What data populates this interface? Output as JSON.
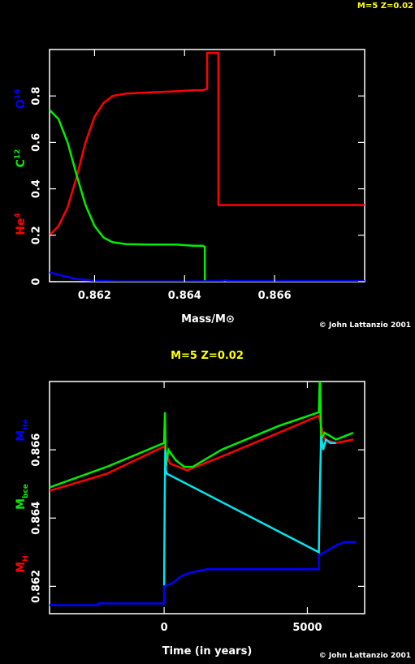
{
  "corner_label": "M=5 Z=0.02",
  "colors": {
    "red": "#ff0000",
    "green": "#00ee00",
    "blue": "#0000ff",
    "cyan": "#00e5ee",
    "yellow": "#ffff00",
    "frame": "#ffffff"
  },
  "chart_data": [
    {
      "type": "line",
      "title": "",
      "xlabel": "Mass/M⊙",
      "ylabel_parts": [
        {
          "base": "He",
          "sup": "4",
          "color": "#ff0000"
        },
        {
          "base": "C",
          "sup": "12",
          "color": "#00ee00"
        },
        {
          "base": "O",
          "sup": "16",
          "color": "#0000ff"
        }
      ],
      "xlim": [
        0.861,
        0.868
      ],
      "ylim": [
        0,
        1.0
      ],
      "x_ticks": [
        0.862,
        0.864,
        0.866
      ],
      "x_tick_labels": [
        "0.862",
        "0.864",
        "0.866"
      ],
      "y_ticks": [
        0,
        0.2,
        0.4,
        0.6,
        0.8
      ],
      "y_tick_labels": [
        "0",
        "0.2",
        "0.4",
        "0.6",
        "0.8"
      ],
      "credit": "© John Lattanzio 2001",
      "series": [
        {
          "color": "#ff0000",
          "points": [
            [
              0.861,
              0.2
            ],
            [
              0.8612,
              0.24
            ],
            [
              0.8614,
              0.32
            ],
            [
              0.8616,
              0.45
            ],
            [
              0.8618,
              0.6
            ],
            [
              0.862,
              0.71
            ],
            [
              0.8622,
              0.77
            ],
            [
              0.8624,
              0.8
            ],
            [
              0.8627,
              0.81
            ],
            [
              0.8632,
              0.815
            ],
            [
              0.8638,
              0.82
            ],
            [
              0.8642,
              0.825
            ],
            [
              0.8644,
              0.825
            ],
            [
              0.8645,
              0.83
            ],
            [
              0.8645,
              0.985
            ],
            [
              0.86475,
              0.985
            ],
            [
              0.86475,
              0.33
            ],
            [
              0.866,
              0.33
            ],
            [
              0.868,
              0.33
            ]
          ]
        },
        {
          "color": "#00ee00",
          "points": [
            [
              0.861,
              0.74
            ],
            [
              0.8612,
              0.7
            ],
            [
              0.8614,
              0.6
            ],
            [
              0.8616,
              0.46
            ],
            [
              0.8618,
              0.33
            ],
            [
              0.862,
              0.24
            ],
            [
              0.8622,
              0.19
            ],
            [
              0.8624,
              0.17
            ],
            [
              0.8627,
              0.162
            ],
            [
              0.8632,
              0.16
            ],
            [
              0.8638,
              0.16
            ],
            [
              0.8642,
              0.155
            ],
            [
              0.8644,
              0.155
            ],
            [
              0.86445,
              0.15
            ],
            [
              0.86445,
              0.0
            ],
            [
              0.8645,
              0.0
            ]
          ]
        },
        {
          "color": "#0000ff",
          "points": [
            [
              0.861,
              0.04
            ],
            [
              0.8613,
              0.025
            ],
            [
              0.8616,
              0.012
            ],
            [
              0.862,
              0.004
            ],
            [
              0.8625,
              0.001
            ],
            [
              0.864,
              0.001
            ],
            [
              0.8648,
              0.002
            ],
            [
              0.8649,
              0.006
            ],
            [
              0.865,
              0.002
            ],
            [
              0.868,
              0.002
            ]
          ]
        }
      ]
    },
    {
      "type": "line",
      "title": "M=5 Z=0.02",
      "xlabel": "Time (in years)",
      "ylabel_parts": [
        {
          "base": "M",
          "sub": "H",
          "color": "#ff0000"
        },
        {
          "base": "M",
          "sub": "bce",
          "color": "#00ee00"
        },
        {
          "base": "M",
          "sub": "He",
          "color": "#0000ff"
        }
      ],
      "xlim": [
        -4000,
        7000
      ],
      "ylim": [
        0.8612,
        0.868
      ],
      "x_ticks": [
        0,
        5000
      ],
      "x_tick_labels": [
        "0",
        "5000"
      ],
      "y_ticks": [
        0.862,
        0.864,
        0.866
      ],
      "y_tick_labels": [
        "0.862",
        "0.864",
        "0.866"
      ],
      "credit": "© John Lattanzio 2001",
      "series": [
        {
          "color": "#ff0000",
          "points": [
            [
              -4000,
              0.8648
            ],
            [
              -2000,
              0.8653
            ],
            [
              0,
              0.8661
            ],
            [
              200,
              0.8656
            ],
            [
              800,
              0.8654
            ],
            [
              2000,
              0.8658
            ],
            [
              4000,
              0.8665
            ],
            [
              5400,
              0.867
            ],
            [
              5600,
              0.8663
            ],
            [
              6000,
              0.8662
            ],
            [
              6600,
              0.8663
            ]
          ]
        },
        {
          "color": "#00ee00",
          "points": [
            [
              -4000,
              0.8649
            ],
            [
              -2000,
              0.8655
            ],
            [
              0,
              0.8662
            ],
            [
              30,
              0.8671
            ],
            [
              60,
              0.8655
            ],
            [
              150,
              0.866
            ],
            [
              400,
              0.8657
            ],
            [
              700,
              0.8655
            ],
            [
              1000,
              0.8655
            ],
            [
              2000,
              0.866
            ],
            [
              4000,
              0.8667
            ],
            [
              5400,
              0.8671
            ],
            [
              5440,
              0.8683
            ],
            [
              5480,
              0.8663
            ],
            [
              5600,
              0.8665
            ],
            [
              5800,
              0.8664
            ],
            [
              6000,
              0.8663
            ],
            [
              6300,
              0.8664
            ],
            [
              6600,
              0.8665
            ]
          ]
        },
        {
          "color": "#00e5ee",
          "points": [
            [
              0,
              0.862
            ],
            [
              20,
              0.8645
            ],
            [
              40,
              0.866
            ],
            [
              60,
              0.8654
            ],
            [
              100,
              0.8653
            ],
            [
              5400,
              0.863
            ],
            [
              5440,
              0.865
            ],
            [
              5480,
              0.8664
            ],
            [
              5550,
              0.866
            ],
            [
              5650,
              0.8663
            ],
            [
              5800,
              0.8662
            ],
            [
              6000,
              0.8662
            ]
          ]
        },
        {
          "color": "#0000ff",
          "points": [
            [
              -4000,
              0.86145
            ],
            [
              -2300,
              0.86145
            ],
            [
              -2300,
              0.8615
            ],
            [
              0,
              0.8615
            ],
            [
              0,
              0.862
            ],
            [
              300,
              0.8621
            ],
            [
              600,
              0.8623
            ],
            [
              900,
              0.8624
            ],
            [
              1500,
              0.8625
            ],
            [
              5400,
              0.8625
            ],
            [
              5400,
              0.8629
            ],
            [
              5600,
              0.863
            ],
            [
              5800,
              0.8631
            ],
            [
              6000,
              0.8632
            ],
            [
              6300,
              0.8633
            ],
            [
              6700,
              0.8633
            ]
          ]
        }
      ]
    }
  ]
}
